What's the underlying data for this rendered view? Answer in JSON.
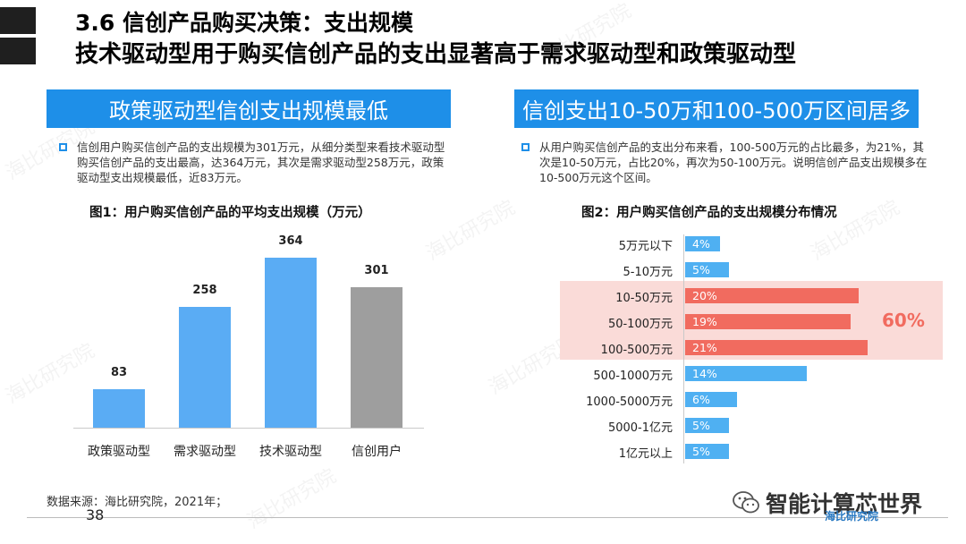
{
  "header": {
    "title_line1": "3.6 信创产品购买决策：支出规模",
    "title_line2": "技术驱动型用于购买信创产品的支出显著高于需求驱动型和政策驱动型"
  },
  "left": {
    "banner": "政策驱动型信创支出规模最低",
    "bullet": "信创用户购买信创产品的支出规模为301万元，从细分类型来看技术驱动型购买信创产品的支出最高，达364万元，其次是需求驱动型258万元，政策驱动型支出规模最低，近83万元。",
    "figure_title": "图1：用户购买信创产品的平均支出规模（万元）"
  },
  "right": {
    "banner": "信创支出10-50万和100-500万区间居多",
    "bullet": "从用户购买信创产品的支出分布来看，100-500万元的占比最多，为21%，其次是10-50万元，占比20%，再次为50-100万元。说明信创产品支出规模多在10-500万元这个区间。",
    "figure_title": "图2：用户购买信创产品的支出规模分布情况",
    "highlight_label": "60%"
  },
  "chart_data": [
    {
      "type": "bar",
      "categories": [
        "政策驱动型",
        "需求驱动型",
        "技术驱动型",
        "信创用户"
      ],
      "values": [
        83,
        258,
        364,
        301
      ],
      "title": "图1：用户购买信创产品的平均支出规模（万元）",
      "ylim": [
        0,
        364
      ],
      "colors": [
        "#5aacf4",
        "#5aacf4",
        "#5aacf4",
        "#9e9e9e"
      ]
    },
    {
      "type": "bar",
      "orientation": "horizontal",
      "categories": [
        "5万元以下",
        "5-10万元",
        "10-50万元",
        "50-100万元",
        "100-500万元",
        "500-1000万元",
        "1000-5000万元",
        "5000-1亿元",
        "1亿元以上"
      ],
      "values": [
        4,
        5,
        20,
        19,
        21,
        14,
        6,
        5,
        5
      ],
      "labels": [
        "4%",
        "5%",
        "20%",
        "19%",
        "21%",
        "14%",
        "6%",
        "5%",
        "5%"
      ],
      "title": "图2：用户购买信创产品的支出规模分布情况",
      "xlim": [
        0,
        21
      ],
      "highlighted_categories": [
        "10-50万元",
        "50-100万元",
        "100-500万元"
      ],
      "colors": {
        "normal": "#4fb0f2",
        "highlight": "#f16b5f"
      }
    }
  ],
  "footer": {
    "source": "数据来源：海比研究院，2021年；",
    "page_number": "38",
    "brand_name": "智能计算芯世界",
    "brand_logo": "海比研究院"
  },
  "watermark_text": "海比研究院"
}
